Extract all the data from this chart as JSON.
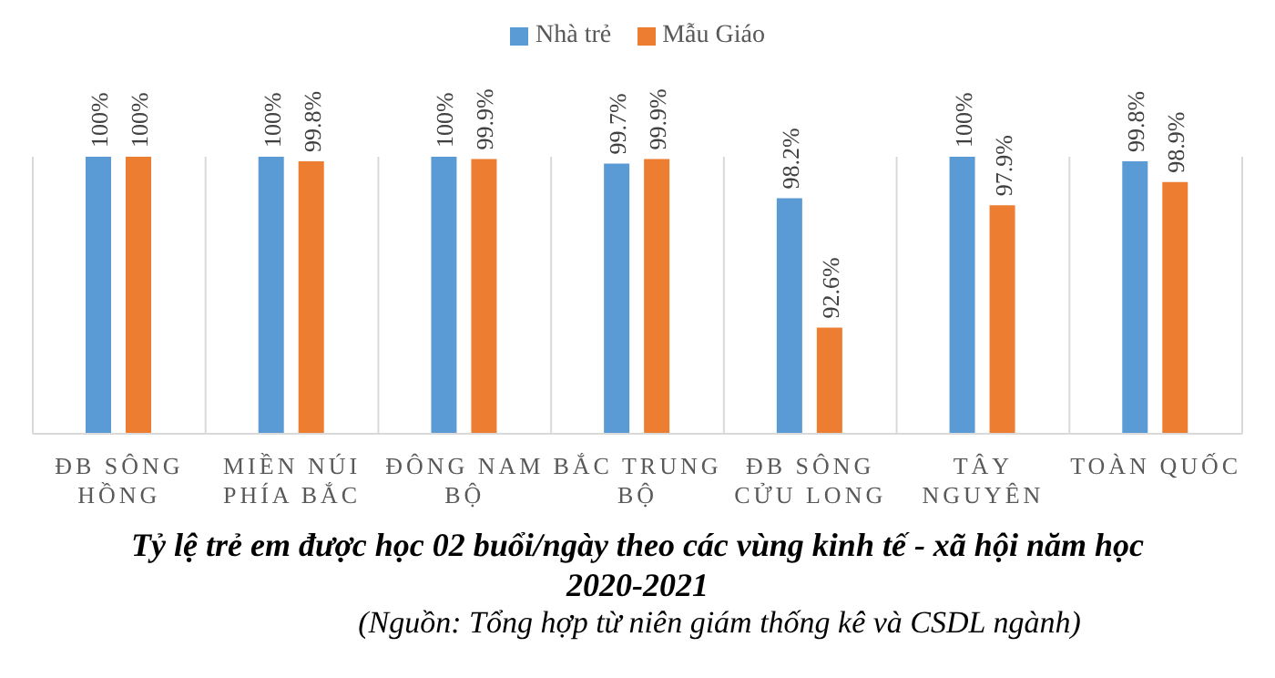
{
  "chart_data": {
    "type": "bar",
    "title": "Tỷ lệ trẻ em được học 02 buổi/ngày theo các vùng kinh tế - xã hội năm học 2020-2021",
    "annotations": [
      "(Nguồn: Tổng hợp từ niên giám thống kê và CSDL ngành)"
    ],
    "categories": [
      "ĐB SÔNG HỒNG",
      "MIỀN NÚI PHÍA BẮC",
      "ĐÔNG NAM BỘ",
      "BẮC TRUNG BỘ",
      "ĐB SÔNG CỬU LONG",
      "TÂY NGUYÊN",
      "TOÀN QUỐC"
    ],
    "series": [
      {
        "name": "Nhà trẻ",
        "color": "#5b9bd5",
        "values": [
          100,
          100,
          100,
          99.7,
          98.2,
          100,
          99.8
        ],
        "value_labels": [
          "100%",
          "100%",
          "100%",
          "99.7%",
          "98.2%",
          "100%",
          "99.8%"
        ]
      },
      {
        "name": "Mẫu Giáo",
        "color": "#ed7d31",
        "values": [
          100,
          99.8,
          99.9,
          99.9,
          92.6,
          97.9,
          98.9
        ],
        "value_labels": [
          "100%",
          "99.8%",
          "99.9%",
          "99.9%",
          "92.6%",
          "97.9%",
          "98.9%"
        ]
      }
    ],
    "ylim": [
      88,
      100
    ],
    "tick_labels": "x",
    "grid": "x",
    "legend": "top"
  }
}
